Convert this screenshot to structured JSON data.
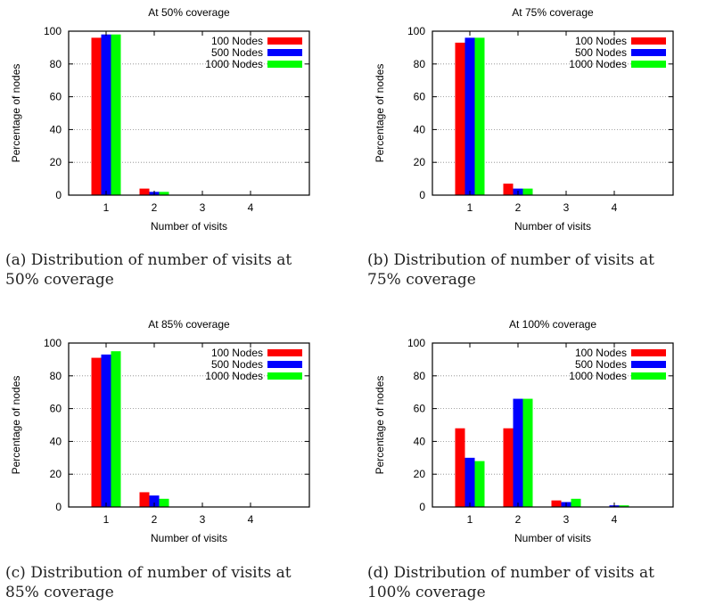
{
  "chart_data": [
    {
      "type": "bar",
      "title": "At 50% coverage",
      "xlabel": "Number of visits",
      "ylabel": "Percentage of nodes",
      "categories": [
        "1",
        "2",
        "3",
        "4"
      ],
      "ylim": [
        0,
        100
      ],
      "yticks": [
        "0",
        "20",
        "40",
        "60",
        "80",
        "100"
      ],
      "grid": true,
      "legend_position": "top-right",
      "series": [
        {
          "name": "100 Nodes",
          "color": "#ff0000",
          "values": [
            96,
            4,
            0,
            0
          ]
        },
        {
          "name": "500 Nodes",
          "color": "#0000ff",
          "values": [
            98,
            2,
            0,
            0
          ]
        },
        {
          "name": "1000 Nodes",
          "color": "#00ff00",
          "values": [
            98,
            2,
            0,
            0
          ]
        }
      ],
      "caption_line1": "(a) Distribution of number of visits at",
      "caption_line2": "50% coverage"
    },
    {
      "type": "bar",
      "title": "At 75% coverage",
      "xlabel": "Number of visits",
      "ylabel": "Percentage of nodes",
      "categories": [
        "1",
        "2",
        "3",
        "4"
      ],
      "ylim": [
        0,
        100
      ],
      "yticks": [
        "0",
        "20",
        "40",
        "60",
        "80",
        "100"
      ],
      "grid": true,
      "legend_position": "top-right",
      "series": [
        {
          "name": "100 Nodes",
          "color": "#ff0000",
          "values": [
            93,
            7,
            0,
            0
          ]
        },
        {
          "name": "500 Nodes",
          "color": "#0000ff",
          "values": [
            96,
            4,
            0,
            0
          ]
        },
        {
          "name": "1000 Nodes",
          "color": "#00ff00",
          "values": [
            96,
            4,
            0,
            0
          ]
        }
      ],
      "caption_line1": "(b) Distribution of number of visits at",
      "caption_line2": "75% coverage"
    },
    {
      "type": "bar",
      "title": "At 85% coverage",
      "xlabel": "Number of visits",
      "ylabel": "Percentage of nodes",
      "categories": [
        "1",
        "2",
        "3",
        "4"
      ],
      "ylim": [
        0,
        100
      ],
      "yticks": [
        "0",
        "20",
        "40",
        "60",
        "80",
        "100"
      ],
      "grid": true,
      "legend_position": "top-right",
      "series": [
        {
          "name": "100 Nodes",
          "color": "#ff0000",
          "values": [
            91,
            9,
            0,
            0
          ]
        },
        {
          "name": "500 Nodes",
          "color": "#0000ff",
          "values": [
            93,
            7,
            0,
            0
          ]
        },
        {
          "name": "1000 Nodes",
          "color": "#00ff00",
          "values": [
            95,
            5,
            0,
            0
          ]
        }
      ],
      "caption_line1": "(c) Distribution of number of visits at",
      "caption_line2": "85% coverage"
    },
    {
      "type": "bar",
      "title": "At 100% coverage",
      "xlabel": "Number of visits",
      "ylabel": "Percentage of nodes",
      "categories": [
        "1",
        "2",
        "3",
        "4"
      ],
      "ylim": [
        0,
        100
      ],
      "yticks": [
        "0",
        "20",
        "40",
        "60",
        "80",
        "100"
      ],
      "grid": true,
      "legend_position": "top-right",
      "series": [
        {
          "name": "100 Nodes",
          "color": "#ff0000",
          "values": [
            48,
            48,
            4,
            0
          ]
        },
        {
          "name": "500 Nodes",
          "color": "#0000ff",
          "values": [
            30,
            66,
            3,
            1
          ]
        },
        {
          "name": "1000 Nodes",
          "color": "#00ff00",
          "values": [
            28,
            66,
            5,
            1
          ]
        }
      ],
      "caption_line1": "(d) Distribution of number of visits at",
      "caption_line2": "100% coverage"
    }
  ]
}
